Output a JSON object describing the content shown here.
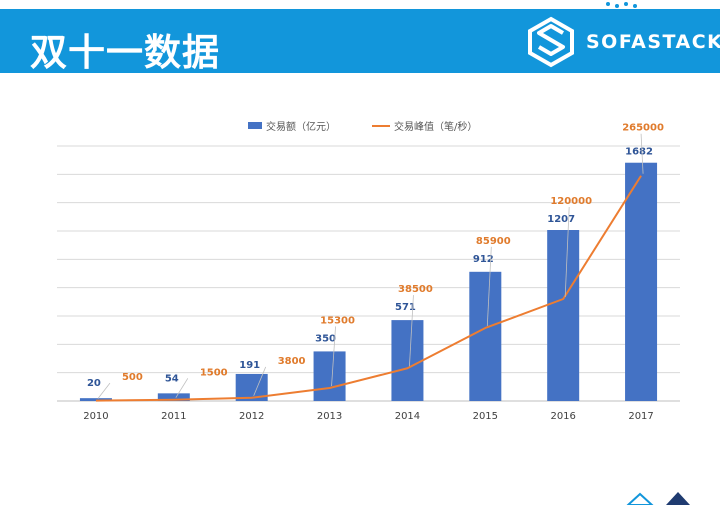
{
  "header": {
    "title": "双十一数据",
    "brand": "SOFASTACK",
    "bg_color": "#1296db"
  },
  "chart_data": {
    "type": "bar",
    "categories": [
      "2010",
      "2011",
      "2012",
      "2013",
      "2014",
      "2015",
      "2016",
      "2017"
    ],
    "series": [
      {
        "name": "交易额（亿元）",
        "type": "bar",
        "axis": "left",
        "color": "#4472c4",
        "values": [
          20,
          54,
          191,
          350,
          571,
          912,
          1207,
          1682
        ]
      },
      {
        "name": "交易峰值（笔/秒）",
        "type": "line",
        "axis": "right",
        "color": "#ed7d31",
        "values": [
          500,
          1500,
          3800,
          15300,
          38500,
          85900,
          120000,
          265000
        ]
      }
    ],
    "ylim_left": [
      0,
      1800
    ],
    "ylim_right": [
      0,
      300000
    ],
    "grid": true,
    "legend_position": "top",
    "data_labels": true
  }
}
